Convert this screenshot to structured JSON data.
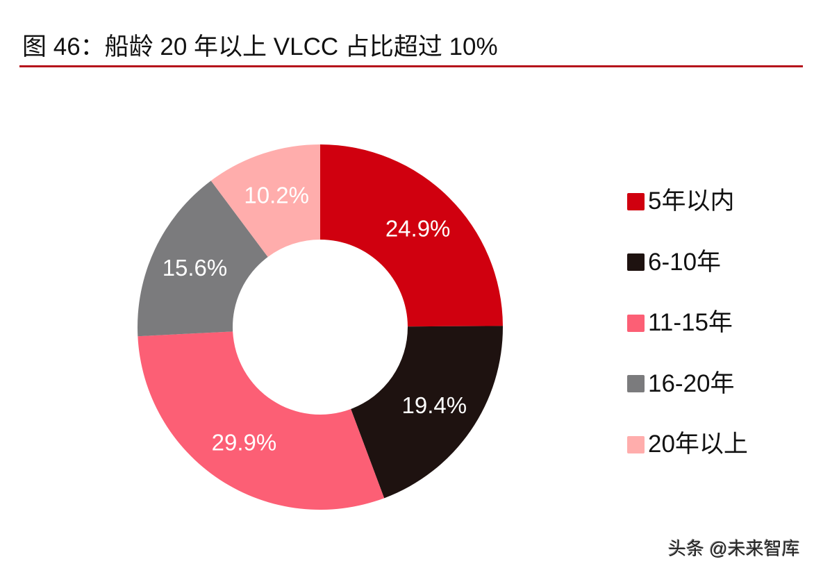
{
  "header": {
    "title": "图 46：船龄 20 年以上 VLCC 占比超过 10%",
    "rule_color": "#b5121b"
  },
  "chart_data": {
    "type": "pie",
    "variant": "donut",
    "title": "图 46：船龄 20 年以上 VLCC 占比超过 10%",
    "categories": [
      "5年以内",
      "6-10年",
      "11-15年",
      "16-20年",
      "20年以上"
    ],
    "values": [
      24.9,
      19.4,
      29.9,
      15.6,
      10.2
    ],
    "unit": "%",
    "labels": [
      "24.9%",
      "19.4%",
      "29.9%",
      "15.6%",
      "10.2%"
    ],
    "colors": [
      "#d0000f",
      "#1e1210",
      "#fc5f75",
      "#7b7b7d",
      "#ffadac"
    ],
    "start_angle_deg": 0,
    "direction": "clockwise",
    "legend_position": "right"
  },
  "legend": {
    "items": [
      {
        "label": "5年以内",
        "color": "#d0000f"
      },
      {
        "label": "6-10年",
        "color": "#1e1210"
      },
      {
        "label": "11-15年",
        "color": "#fc5f75"
      },
      {
        "label": "16-20年",
        "color": "#7b7b7d"
      },
      {
        "label": "20年以上",
        "color": "#ffadac"
      }
    ]
  },
  "watermark": {
    "text": "头条 @未来智库"
  }
}
